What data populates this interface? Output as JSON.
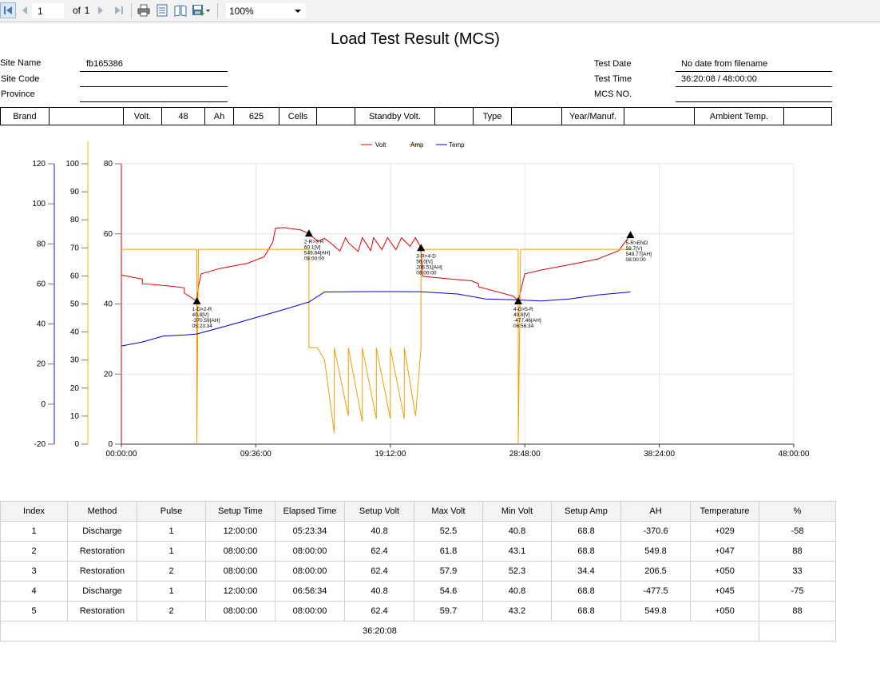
{
  "toolbar": {
    "page_current": "1",
    "page_of": "of",
    "page_total": "1",
    "zoom": "100%",
    "icons": [
      "first-page-icon",
      "prev-page-icon",
      "next-page-icon",
      "last-page-icon",
      "print-icon",
      "print-layout-icon",
      "page-setup-icon",
      "export-icon",
      "dropdown-arrow-icon"
    ]
  },
  "report": {
    "title": "Load Test Result (MCS)",
    "site_name_label": "Site Name",
    "site_name": "fb165386",
    "site_code_label": "Site Code",
    "site_code": "",
    "province_label": "Province",
    "province": "",
    "test_date_label": "Test Date",
    "test_date": "No date from filename",
    "test_time_label": "Test Time",
    "test_time": "36:20:08 / 48:00:00",
    "mcs_no_label": "MCS NO.",
    "mcs_no": ""
  },
  "spec": {
    "brand_label": "Brand",
    "brand": "",
    "volt_label": "Volt.",
    "volt": "48",
    "ah_label": "Ah",
    "ah": "625",
    "cells_label": "Cells",
    "cells": "",
    "standby_label": "Standby Volt.",
    "standby": "",
    "type_label": "Type",
    "type": "",
    "year_label": "Year/Manuf.",
    "year": "",
    "ambient_label": "Ambient Temp.",
    "ambient": ""
  },
  "chart_data": {
    "type": "line",
    "legend": [
      "Volt",
      "Amp",
      "Temp"
    ],
    "legend_position": "top-center",
    "colors": {
      "Volt": "#e00000",
      "Amp": "#f0a000",
      "Temp": "#0000e0"
    },
    "x_ticks": [
      "00:00:00",
      "09:36:00",
      "19:12:00",
      "28:48:00",
      "38:24:00",
      "48:00:00"
    ],
    "x_range_hours": [
      0,
      48
    ],
    "axes": {
      "temp": {
        "ticks": [
          "120",
          "100",
          "80",
          "60",
          "40",
          "20",
          "0",
          "-20"
        ],
        "range": [
          -20,
          120
        ]
      },
      "amp": {
        "ticks": [
          "100",
          "90",
          "80",
          "70",
          "60",
          "50",
          "40",
          "30",
          "20",
          "10",
          "0"
        ],
        "range": [
          0,
          100
        ]
      },
      "volt": {
        "ticks": [
          "80",
          "60",
          "40",
          "20",
          "0"
        ],
        "range": [
          0,
          80
        ]
      }
    },
    "grid": true,
    "series": [
      {
        "name": "Volt",
        "points": [
          [
            0,
            48.3
          ],
          [
            0.85,
            47.6
          ],
          [
            1.5,
            47.1
          ],
          [
            1.5,
            45.8
          ],
          [
            3.5,
            45.1
          ],
          [
            4.5,
            44.6
          ],
          [
            4.5,
            43.1
          ],
          [
            5.39,
            40.8
          ],
          [
            5.5,
            45.0
          ],
          [
            5.7,
            48.6
          ],
          [
            7,
            50.1
          ],
          [
            9,
            51.6
          ],
          [
            10.2,
            53.5
          ],
          [
            10.8,
            57.6
          ],
          [
            11.0,
            61.6
          ],
          [
            11.6,
            61.8
          ],
          [
            12.8,
            61.1
          ],
          [
            13.39,
            60.1
          ],
          [
            13.6,
            59.3
          ],
          [
            14.0,
            57.9
          ],
          [
            14.5,
            58.7
          ],
          [
            15.0,
            57.2
          ],
          [
            15.6,
            55.1
          ],
          [
            16.0,
            58.9
          ],
          [
            16.2,
            57.5
          ],
          [
            16.9,
            55.0
          ],
          [
            17.2,
            58.9
          ],
          [
            17.8,
            55.2
          ],
          [
            18.0,
            58.9
          ],
          [
            18.6,
            55.5
          ],
          [
            19.0,
            58.9
          ],
          [
            19.6,
            55.5
          ],
          [
            20.0,
            58.9
          ],
          [
            20.6,
            56.4
          ],
          [
            21.0,
            58.9
          ],
          [
            21.39,
            56.0
          ],
          [
            21.5,
            47.9
          ],
          [
            23.0,
            47.3
          ],
          [
            25.0,
            46.6
          ],
          [
            25.5,
            45.8
          ],
          [
            25.5,
            44.9
          ],
          [
            28.0,
            42.2
          ],
          [
            28.33,
            40.8
          ],
          [
            28.5,
            43.6
          ],
          [
            28.8,
            48.6
          ],
          [
            30,
            49.7
          ],
          [
            32,
            51.2
          ],
          [
            34,
            52.8
          ],
          [
            35.5,
            55.2
          ],
          [
            36.34,
            59.7
          ]
        ]
      },
      {
        "name": "Amp",
        "points": [
          [
            0,
            69.5
          ],
          [
            5.39,
            69.5
          ],
          [
            5.39,
            0
          ],
          [
            5.5,
            69.5
          ],
          [
            13.39,
            69.5
          ],
          [
            13.39,
            34.4
          ],
          [
            14.0,
            34.4
          ],
          [
            14.5,
            30
          ],
          [
            15.2,
            4
          ],
          [
            15.2,
            34.4
          ],
          [
            16.2,
            10
          ],
          [
            16.2,
            34.4
          ],
          [
            17.2,
            8
          ],
          [
            17.2,
            34.4
          ],
          [
            18.2,
            9
          ],
          [
            18.2,
            34.4
          ],
          [
            19.2,
            9
          ],
          [
            19.2,
            34.4
          ],
          [
            20.2,
            9
          ],
          [
            20.2,
            34.4
          ],
          [
            21.0,
            10
          ],
          [
            21.39,
            34.4
          ],
          [
            21.39,
            69.5
          ],
          [
            28.33,
            69.5
          ],
          [
            28.33,
            0
          ],
          [
            28.5,
            69.5
          ],
          [
            36.34,
            69.5
          ]
        ]
      },
      {
        "name": "Temp",
        "points": [
          [
            0,
            29
          ],
          [
            1.5,
            31
          ],
          [
            3,
            34
          ],
          [
            4.5,
            34.5
          ],
          [
            5.39,
            35
          ],
          [
            8,
            40
          ],
          [
            10.5,
            45
          ],
          [
            11.5,
            47
          ],
          [
            13.39,
            51
          ],
          [
            14.5,
            56
          ],
          [
            18,
            56.2
          ],
          [
            21.39,
            56.1
          ],
          [
            24,
            55
          ],
          [
            26,
            52.5
          ],
          [
            28.33,
            52
          ],
          [
            30,
            51.5
          ],
          [
            32,
            52.5
          ],
          [
            34,
            54.5
          ],
          [
            36.34,
            56
          ]
        ]
      }
    ],
    "markers": [
      {
        "x": 5.39,
        "y_volt": 40.8,
        "label": [
          "1-D>2-R",
          "40.8[V]",
          "-370.59[AH]",
          "05:23:34"
        ]
      },
      {
        "x": 13.39,
        "y_volt": 60.1,
        "label": [
          "2-R>3-R",
          "60.1[V]",
          "549.84[AH]",
          "08:00:00"
        ]
      },
      {
        "x": 21.39,
        "y_volt": 56.0,
        "label": [
          "3-R>4-D",
          "56.0[V]",
          "206.51[AH]",
          "08:00:00"
        ]
      },
      {
        "x": 28.33,
        "y_volt": 40.8,
        "label": [
          "4-D>5-R",
          "40.8[V]",
          "-477.46[AH]",
          "06:56:34"
        ]
      },
      {
        "x": 36.34,
        "y_volt": 59.7,
        "label": [
          "5-R>END",
          "59.7[V]",
          "549.77[AH]",
          "08:00:00"
        ]
      }
    ]
  },
  "table": {
    "headers": [
      "Index",
      "Method",
      "Pulse",
      "Setup Time",
      "Elapsed Time",
      "Setup Volt",
      "Max Volt",
      "Min Volt",
      "Setup Amp",
      "AH",
      "Temperature",
      "%"
    ],
    "rows": [
      [
        "1",
        "Discharge",
        "1",
        "12:00:00",
        "05:23:34",
        "40.8",
        "52.5",
        "40.8",
        "68.8",
        "-370.6",
        "+029",
        "-58"
      ],
      [
        "2",
        "Restoration",
        "1",
        "08:00:00",
        "08:00:00",
        "62.4",
        "61.8",
        "43.1",
        "68.8",
        "549.8",
        "+047",
        "88"
      ],
      [
        "3",
        "Restoration",
        "2",
        "08:00:00",
        "08:00:00",
        "62.4",
        "57.9",
        "52.3",
        "34.4",
        "206.5",
        "+050",
        "33"
      ],
      [
        "4",
        "Discharge",
        "1",
        "12:00:00",
        "06:56:34",
        "40.8",
        "54.6",
        "40.8",
        "68.8",
        "-477.5",
        "+045",
        "-75"
      ],
      [
        "5",
        "Restoration",
        "2",
        "08:00:00",
        "08:00:00",
        "62.4",
        "59.7",
        "43.2",
        "68.8",
        "549.8",
        "+050",
        "88"
      ]
    ],
    "total": "36:20:08"
  }
}
